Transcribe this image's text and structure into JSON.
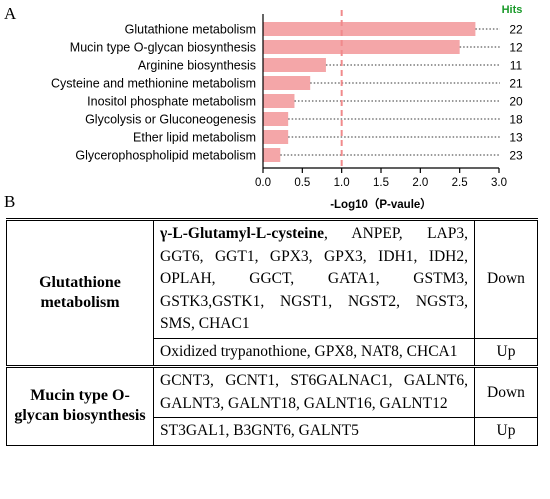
{
  "panels": {
    "a": "A",
    "b": "B"
  },
  "chart_data": {
    "type": "bar",
    "orientation": "horizontal",
    "categories": [
      "Glutathione metabolism",
      "Mucin type O-glycan biosynthesis",
      "Arginine biosynthesis",
      "Cysteine and methionine metabolism",
      "Inositol phosphate metabolism",
      "Glycolysis or Gluconeogenesis",
      "Ether lipid metabolism",
      "Glycerophospholipid metabolism"
    ],
    "values": [
      2.7,
      2.5,
      0.8,
      0.6,
      0.4,
      0.32,
      0.32,
      0.22
    ],
    "hits": [
      "22",
      "12",
      "11",
      "21",
      "20",
      "18",
      "13",
      "23"
    ],
    "hits_label": "Hits",
    "xlabel": "-Log10（P-vaule）",
    "xlim": [
      0,
      3
    ],
    "xticks": [
      "0.0",
      "0.5",
      "1.0",
      "1.5",
      "2.0",
      "2.5",
      "3.0"
    ],
    "threshold": 1.0,
    "colors": {
      "bar": "#f4a6a8",
      "threshold": "#f08a8c",
      "hits": "#1a9a2a"
    }
  },
  "table": {
    "rows": [
      {
        "pathway": "Glutathione metabolism",
        "bold_gene": "γ-L-Glutamyl-L-cysteine",
        "genes": ", ANPEP, LAP3, GGT6, GGT1, GPX3, GPX3, IDH1, IDH2, OPLAH, GGCT, GATA1, GSTM3, GSTK3,GSTK1, NGST1, NGST2, NGST3, SMS, CHAC1",
        "direction": "Down"
      },
      {
        "pathway": "",
        "bold_gene": "",
        "genes": "Oxidized trypanothione, GPX8, NAT8, CHCA1",
        "direction": "Up"
      },
      {
        "pathway": "Mucin type O-glycan biosynthesis",
        "bold_gene": "",
        "genes": "GCNT3, GCNT1, ST6GALNAC1, GALNT6, GALNT3, GALNT18, GALNT16, GALNT12",
        "direction": "Down"
      },
      {
        "pathway": "",
        "bold_gene": "",
        "genes": "ST3GAL1, B3GNT6, GALNT5",
        "direction": "Up"
      }
    ]
  }
}
